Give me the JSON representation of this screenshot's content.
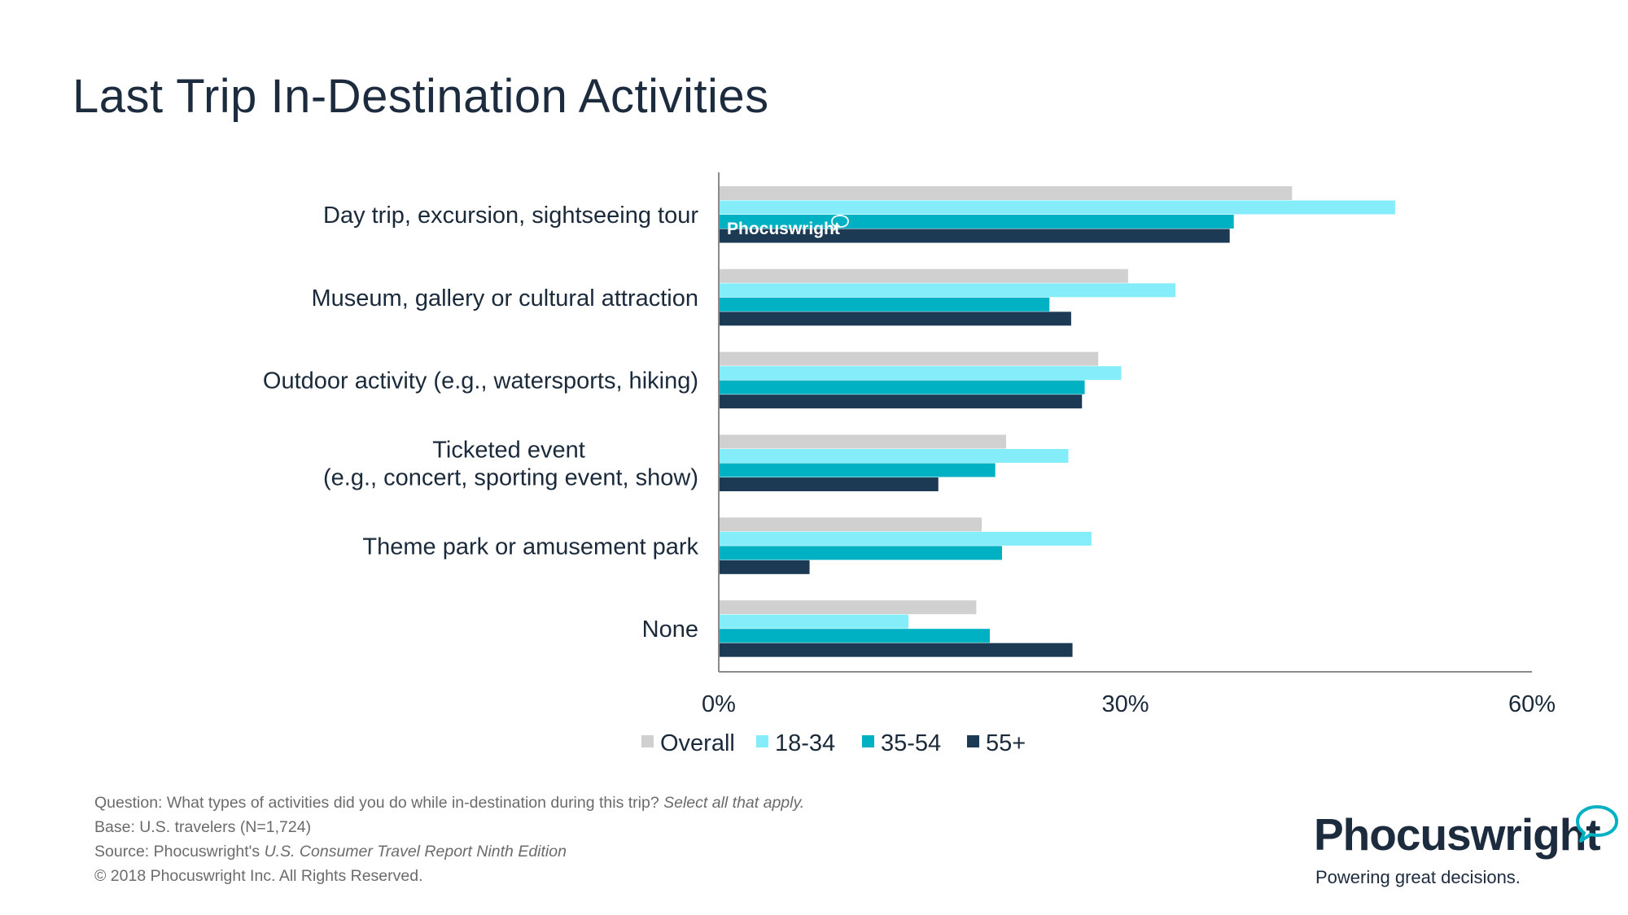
{
  "page": {
    "title": "Last Trip In-Destination Activities"
  },
  "chart_data": {
    "type": "bar",
    "orientation": "horizontal",
    "categories": [
      [
        "Day trip, excursion, sightseeing tour"
      ],
      [
        "Museum, gallery or cultural attraction"
      ],
      [
        "Outdoor activity (e.g., watersports, hiking)"
      ],
      [
        "Ticketed event",
        "(e.g., concert, sporting event, show)"
      ],
      [
        "Theme park or amusement park"
      ],
      [
        "None"
      ]
    ],
    "series": [
      {
        "name": "Overall",
        "color": "#d0d0d0",
        "values": [
          42.3,
          30.2,
          28.0,
          21.2,
          19.4,
          19.0
        ]
      },
      {
        "name": "18-34",
        "color": "#85edf9",
        "values": [
          49.9,
          33.7,
          29.7,
          25.8,
          27.5,
          14.0
        ]
      },
      {
        "name": "35-54",
        "color": "#00b0c3",
        "values": [
          38.0,
          24.4,
          27.0,
          20.4,
          20.9,
          20.0
        ]
      },
      {
        "name": "55+",
        "color": "#1c3a53",
        "values": [
          37.7,
          26.0,
          26.8,
          16.2,
          6.7,
          26.1
        ]
      }
    ],
    "xlim": [
      0,
      60
    ],
    "xticks": [
      "0%",
      "30%",
      "60%"
    ],
    "legend_position": "bottom",
    "grid": false,
    "watermark": "Phocuswright"
  },
  "footnotes": {
    "question_prefix": "Question: What types of activities did you do while in-destination during this trip? ",
    "question_italic": "Select all that apply.",
    "base": "Base: U.S. travelers (N=1,724)",
    "source_prefix": "Source: Phocuswright's ",
    "source_italic": "U.S. Consumer Travel Report Ninth Edition",
    "copyright": "© 2018 Phocuswright Inc. All Rights Reserved."
  },
  "logo": {
    "wordmark": "Phocuswright",
    "tagline": "Powering great decisions."
  }
}
